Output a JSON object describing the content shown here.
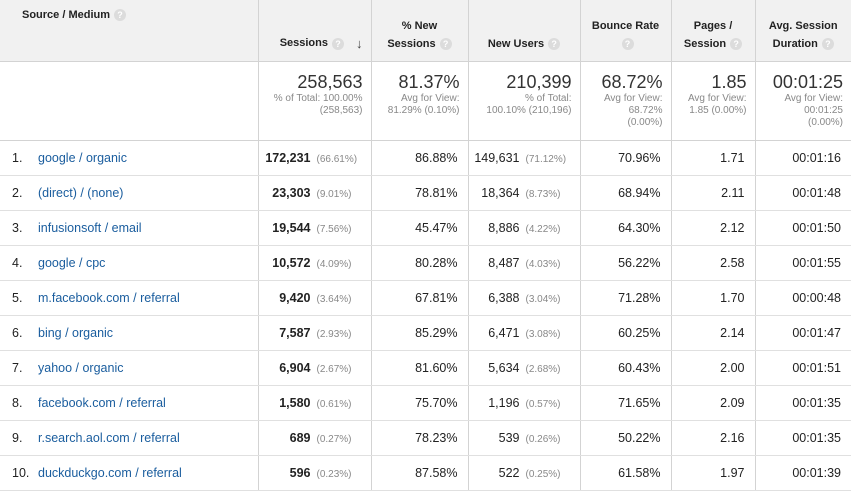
{
  "header": {
    "source_medium": "Source / Medium",
    "sessions": "Sessions",
    "new_sessions_line1": "% New",
    "new_sessions_line2": "Sessions",
    "new_users": "New Users",
    "bounce_rate": "Bounce Rate",
    "pages_line1": "Pages /",
    "pages_line2": "Session",
    "duration_line1": "Avg. Session",
    "duration_line2": "Duration",
    "help_glyph": "?",
    "sort_glyph": "↓"
  },
  "totals": {
    "sessions": {
      "value": "258,563",
      "sub1": "% of Total: 100.00%",
      "sub2": "(258,563)"
    },
    "new_sessions": {
      "value": "81.37%",
      "sub1": "Avg for View:",
      "sub2": "81.29% (0.10%)"
    },
    "new_users": {
      "value": "210,399",
      "sub1": "% of Total:",
      "sub2": "100.10% (210,196)"
    },
    "bounce_rate": {
      "value": "68.72%",
      "sub1": "Avg for View:",
      "sub2": "68.72%",
      "sub3": "(0.00%)"
    },
    "pages": {
      "value": "1.85",
      "sub1": "Avg for View:",
      "sub2": "1.85 (0.00%)"
    },
    "duration": {
      "value": "00:01:25",
      "sub1": "Avg for View:",
      "sub2": "00:01:25",
      "sub3": "(0.00%)"
    }
  },
  "rows": [
    {
      "idx": "1.",
      "source": "google / organic",
      "sessions": "172,231",
      "sessions_pct": "(66.61%)",
      "new_sessions": "86.88%",
      "new_users": "149,631",
      "new_users_pct": "(71.12%)",
      "bounce": "70.96%",
      "pages": "1.71",
      "duration": "00:01:16"
    },
    {
      "idx": "2.",
      "source": "(direct) / (none)",
      "sessions": "23,303",
      "sessions_pct": "(9.01%)",
      "new_sessions": "78.81%",
      "new_users": "18,364",
      "new_users_pct": "(8.73%)",
      "bounce": "68.94%",
      "pages": "2.11",
      "duration": "00:01:48"
    },
    {
      "idx": "3.",
      "source": "infusionsoft / email",
      "sessions": "19,544",
      "sessions_pct": "(7.56%)",
      "new_sessions": "45.47%",
      "new_users": "8,886",
      "new_users_pct": "(4.22%)",
      "bounce": "64.30%",
      "pages": "2.12",
      "duration": "00:01:50"
    },
    {
      "idx": "4.",
      "source": "google / cpc",
      "sessions": "10,572",
      "sessions_pct": "(4.09%)",
      "new_sessions": "80.28%",
      "new_users": "8,487",
      "new_users_pct": "(4.03%)",
      "bounce": "56.22%",
      "pages": "2.58",
      "duration": "00:01:55"
    },
    {
      "idx": "5.",
      "source": "m.facebook.com / referral",
      "sessions": "9,420",
      "sessions_pct": "(3.64%)",
      "new_sessions": "67.81%",
      "new_users": "6,388",
      "new_users_pct": "(3.04%)",
      "bounce": "71.28%",
      "pages": "1.70",
      "duration": "00:00:48"
    },
    {
      "idx": "6.",
      "source": "bing / organic",
      "sessions": "7,587",
      "sessions_pct": "(2.93%)",
      "new_sessions": "85.29%",
      "new_users": "6,471",
      "new_users_pct": "(3.08%)",
      "bounce": "60.25%",
      "pages": "2.14",
      "duration": "00:01:47"
    },
    {
      "idx": "7.",
      "source": "yahoo / organic",
      "sessions": "6,904",
      "sessions_pct": "(2.67%)",
      "new_sessions": "81.60%",
      "new_users": "5,634",
      "new_users_pct": "(2.68%)",
      "bounce": "60.43%",
      "pages": "2.00",
      "duration": "00:01:51"
    },
    {
      "idx": "8.",
      "source": "facebook.com / referral",
      "sessions": "1,580",
      "sessions_pct": "(0.61%)",
      "new_sessions": "75.70%",
      "new_users": "1,196",
      "new_users_pct": "(0.57%)",
      "bounce": "71.65%",
      "pages": "2.09",
      "duration": "00:01:35"
    },
    {
      "idx": "9.",
      "source": "r.search.aol.com / referral",
      "sessions": "689",
      "sessions_pct": "(0.27%)",
      "new_sessions": "78.23%",
      "new_users": "539",
      "new_users_pct": "(0.26%)",
      "bounce": "50.22%",
      "pages": "2.16",
      "duration": "00:01:35"
    },
    {
      "idx": "10.",
      "source": "duckduckgo.com / referral",
      "sessions": "596",
      "sessions_pct": "(0.23%)",
      "new_sessions": "87.58%",
      "new_users": "522",
      "new_users_pct": "(0.25%)",
      "bounce": "61.58%",
      "pages": "1.97",
      "duration": "00:01:39"
    }
  ]
}
